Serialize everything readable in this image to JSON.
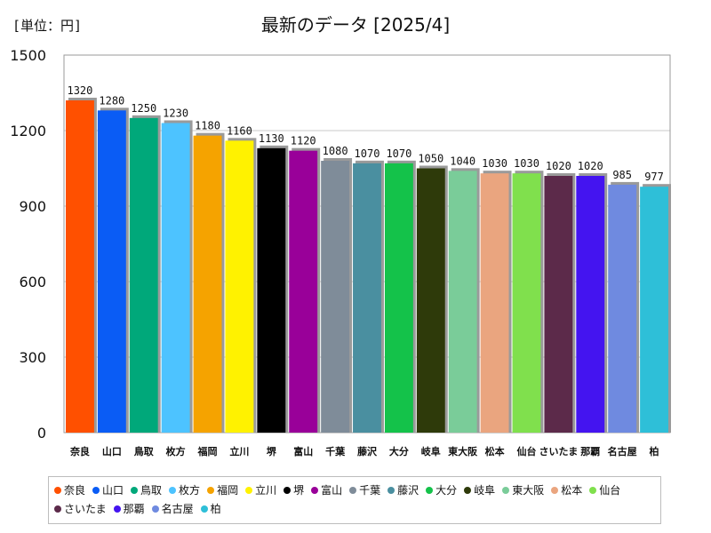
{
  "chart_data": {
    "type": "bar",
    "title": "最新のデータ [2025/4]",
    "unit_label": "[単位：円]",
    "xlabel": "",
    "ylabel": "",
    "ylim": [
      0,
      1500
    ],
    "yticks": [
      0,
      300,
      600,
      900,
      1200,
      1500
    ],
    "grid": true,
    "legend_position": "bottom",
    "categories": [
      "奈良",
      "山口",
      "鳥取",
      "枚方",
      "福岡",
      "立川",
      "堺",
      "富山",
      "千葉",
      "藤沢",
      "大分",
      "岐阜",
      "東大阪",
      "松本",
      "仙台",
      "さいたま",
      "那覇",
      "名古屋",
      "柏"
    ],
    "values": [
      1320,
      1280,
      1250,
      1230,
      1180,
      1160,
      1130,
      1120,
      1080,
      1070,
      1070,
      1050,
      1040,
      1030,
      1030,
      1020,
      1020,
      985,
      977
    ],
    "colors": [
      "#ff5000",
      "#0a5cf5",
      "#00a87a",
      "#4dc3ff",
      "#f5a300",
      "#fff200",
      "#000000",
      "#990099",
      "#7f8c99",
      "#4a8fa0",
      "#14c24a",
      "#2e3a0a",
      "#7acc99",
      "#eaa57f",
      "#80e04d",
      "#5c2a4a",
      "#4414f0",
      "#6f8ae0",
      "#2ebfd8"
    ]
  }
}
